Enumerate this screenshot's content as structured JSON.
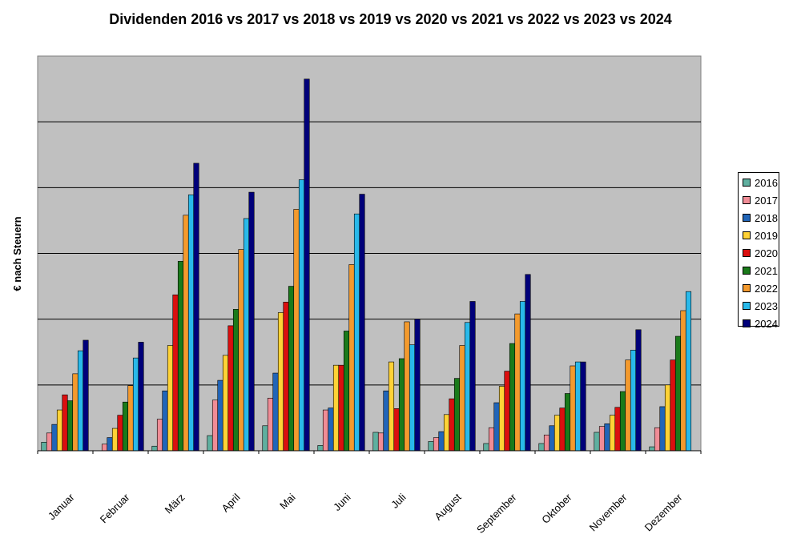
{
  "chart_data": {
    "type": "bar",
    "title": "Dividenden 2016 vs 2017 vs 2018 vs 2019 vs 2020 vs 2021 vs 2022 vs 2023 vs 2024",
    "xlabel": "",
    "ylabel": "€ nach Steuern",
    "ylim": [
      0,
      6
    ],
    "grid": true,
    "legend_position": "right",
    "ytick_labels_shown": false,
    "categories": [
      "Januar",
      "Februar",
      "März",
      "April",
      "Mai",
      "Juni",
      "Juli",
      "August",
      "September",
      "Oktober",
      "November",
      "Dezember"
    ],
    "series": [
      {
        "name": "2016",
        "color": "#5FAF9F",
        "values": [
          0.13,
          0,
          0.07,
          0.23,
          0.38,
          0.08,
          0.28,
          0.14,
          0.11,
          0.11,
          0.28,
          0.06
        ]
      },
      {
        "name": "2017",
        "color": "#F08C96",
        "values": [
          0.27,
          0.1,
          0.48,
          0.77,
          0.8,
          0.62,
          0.27,
          0.2,
          0.35,
          0.24,
          0.37,
          0.35
        ]
      },
      {
        "name": "2018",
        "color": "#2165B8",
        "values": [
          0.4,
          0.2,
          0.91,
          1.07,
          1.18,
          0.65,
          0.91,
          0.29,
          0.73,
          0.38,
          0.41,
          0.67
        ]
      },
      {
        "name": "2019",
        "color": "#FFD236",
        "values": [
          0.62,
          0.34,
          1.6,
          1.45,
          2.1,
          1.3,
          1.35,
          0.55,
          0.98,
          0.54,
          0.54,
          1.0
        ]
      },
      {
        "name": "2020",
        "color": "#DA0F0F",
        "values": [
          0.85,
          0.54,
          2.37,
          1.9,
          2.26,
          1.3,
          0.64,
          0.79,
          1.21,
          0.65,
          0.66,
          1.38
        ]
      },
      {
        "name": "2021",
        "color": "#1A7A1A",
        "values": [
          0.76,
          0.74,
          2.88,
          2.15,
          2.5,
          1.82,
          1.4,
          1.1,
          1.63,
          0.87,
          0.9,
          1.74
        ]
      },
      {
        "name": "2022",
        "color": "#F39A2E",
        "values": [
          1.17,
          0.99,
          3.58,
          3.06,
          3.67,
          2.83,
          1.96,
          1.6,
          2.08,
          1.29,
          1.38,
          2.13
        ]
      },
      {
        "name": "2023",
        "color": "#29B9EA",
        "values": [
          1.52,
          1.41,
          3.89,
          3.53,
          4.12,
          3.6,
          1.61,
          1.95,
          2.27,
          1.35,
          1.53,
          2.42
        ]
      },
      {
        "name": "2024",
        "color": "#00007A",
        "values": [
          1.68,
          1.65,
          4.37,
          3.93,
          5.65,
          3.9,
          2.0,
          2.27,
          2.68,
          1.35,
          1.84,
          null
        ]
      }
    ]
  }
}
